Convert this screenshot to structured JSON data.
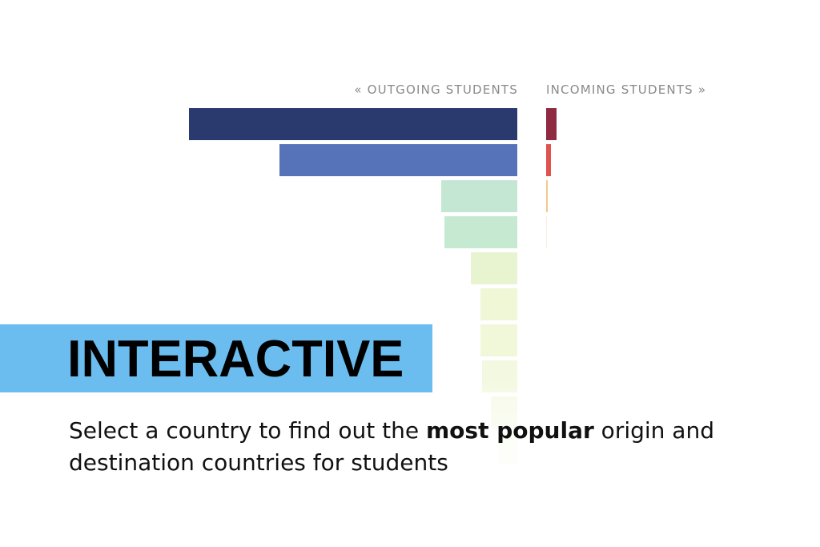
{
  "header": {
    "outgoing_label": "«  OUTGOING STUDENTS",
    "incoming_label": "INCOMING STUDENTS  »"
  },
  "banner": {
    "title": "INTERACTIVE"
  },
  "description": {
    "before": "Select a country to find out the ",
    "bold": "most popular",
    "after": " origin and destination countries for students"
  },
  "outgoing_bars": [
    {
      "value": 410,
      "color": "#2b3a6e"
    },
    {
      "value": 297,
      "color": "#5672b8"
    },
    {
      "value": 95,
      "color": "#c4e7d4"
    },
    {
      "value": 91,
      "color": "#c6e9d2"
    },
    {
      "value": 58,
      "color": "#e7f4cf"
    },
    {
      "value": 46,
      "color": "#eff7d6"
    },
    {
      "value": 46,
      "color": "#f1f8da"
    },
    {
      "value": 44,
      "color": "#f3f9e0"
    },
    {
      "value": 33,
      "color": "#f6fae8"
    },
    {
      "value": 24,
      "color": "#f9fcf0"
    }
  ],
  "incoming_bars": [
    {
      "value": 13,
      "color": "#8e2a42"
    },
    {
      "value": 6,
      "color": "#e0534e"
    },
    {
      "value": 2,
      "color": "#f3c98d"
    },
    {
      "value": 1,
      "color": "#f9f0dc"
    }
  ]
}
